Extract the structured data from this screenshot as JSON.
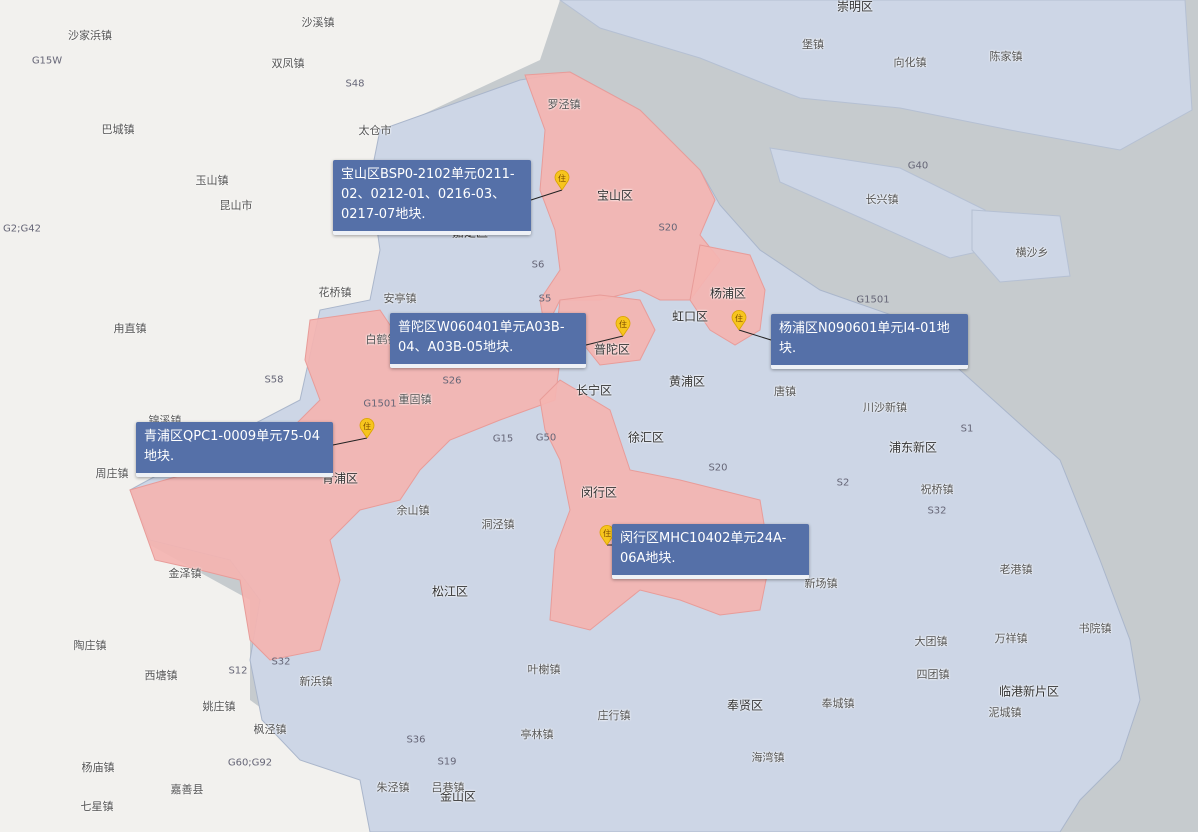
{
  "map": {
    "colors": {
      "water": "#c6cbce",
      "land": "#f2f1ee",
      "shanghai": "#cdd6e6",
      "highlight": "#f4b4b1",
      "callout": "#5570a8",
      "marker": "#f7c51e"
    },
    "marker_icon": "住",
    "callouts": [
      {
        "district": "宝山区",
        "text": "宝山区BSP0-2102单元0211-02、0212-01、0216-03、0217-07地块."
      },
      {
        "district": "普陀区",
        "text": "普陀区W060401单元A03B-04、A03B-05地块."
      },
      {
        "district": "杨浦区",
        "text": "杨浦区N090601单元I4-01地块."
      },
      {
        "district": "青浦区",
        "text": "青浦区QPC1-0009单元75-04地块."
      },
      {
        "district": "闵行区",
        "text": "闵行区MHC10402单元24A-06A地块."
      }
    ],
    "district_labels": [
      "崇明区",
      "宝山区",
      "嘉定区",
      "杨浦区",
      "虹口区",
      "普陀区",
      "长宁区",
      "黄浦区",
      "徐汇区",
      "浦东新区",
      "闵行区",
      "青浦区",
      "松江区",
      "奉贤区",
      "金山区",
      "临港新片区"
    ],
    "town_labels": [
      "堡镇",
      "向化镇",
      "陈家镇",
      "长兴镇",
      "横沙乡",
      "罗泾镇",
      "安亭镇",
      "花桥镇",
      "白鹤镇",
      "重固镇",
      "余山镇",
      "洞泾镇",
      "金泽镇",
      "唐镇",
      "川沙新镇",
      "祝桥镇",
      "新场镇",
      "老港镇",
      "书院镇",
      "大团镇",
      "万祥镇",
      "四团镇",
      "泥城镇",
      "奉城镇",
      "庄行镇",
      "海湾镇",
      "亭林镇",
      "吕巷镇",
      "叶榭镇",
      "新浜镇",
      "枫泾镇",
      "太仓市",
      "双凤镇",
      "沙溪镇",
      "沙家浜镇",
      "巴城镇",
      "玉山镇",
      "昆山市",
      "甪直镇",
      "锦溪镇",
      "周庄镇",
      "陶庄镇",
      "西塘镇",
      "姚庄镇",
      "杨庙镇",
      "嘉善县",
      "七星镇",
      "朱泾镇"
    ],
    "road_labels": [
      "G15W",
      "S48",
      "G2;G42",
      "S58",
      "G1501",
      "S26",
      "G15",
      "G50",
      "S20",
      "S6",
      "S5",
      "S1",
      "S2",
      "S32",
      "G40",
      "S12",
      "G60;G92",
      "S36",
      "S19",
      "G1501",
      "S20",
      "S32"
    ]
  }
}
